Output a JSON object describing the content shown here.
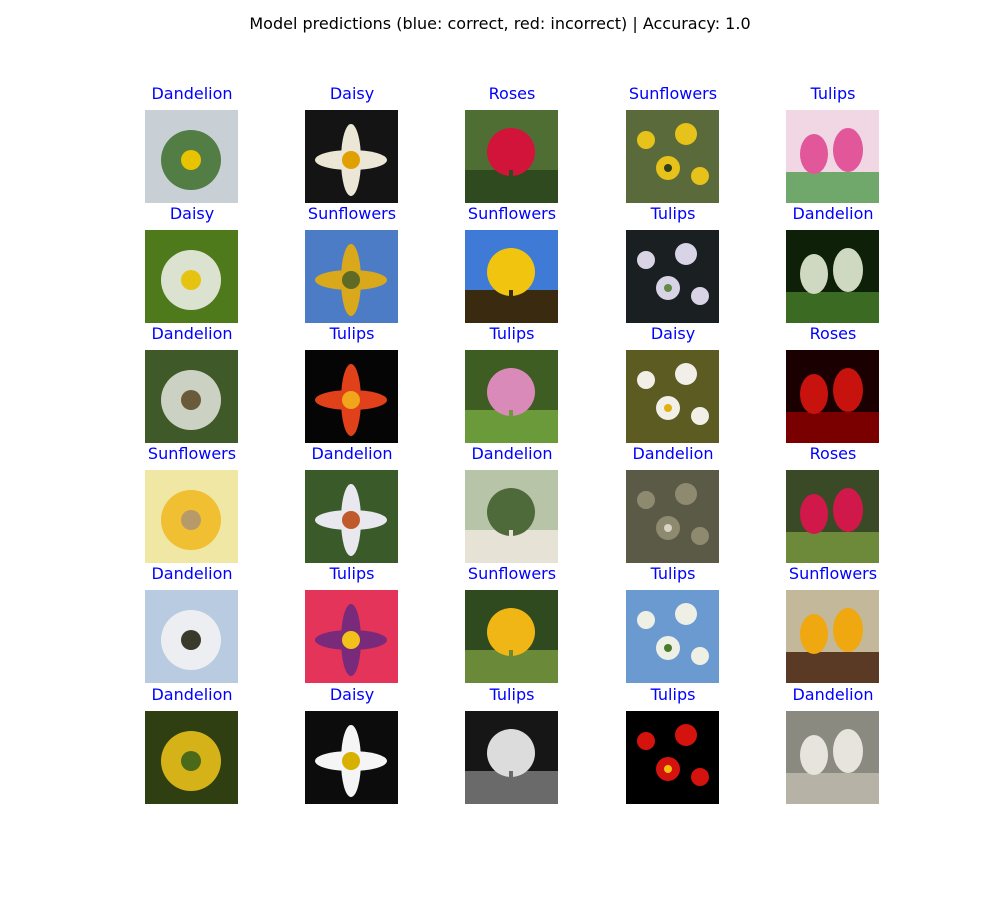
{
  "title": "Model predictions (blue: correct, red: incorrect) | Accuracy: 1.0",
  "colors": {
    "correct": "#0000ff",
    "incorrect": "#ff0000"
  },
  "grid": [
    [
      {
        "label": "Dandelion",
        "correct": true,
        "palette": [
          "#c8d0d6",
          "#3d6e2a",
          "#e8c400"
        ]
      },
      {
        "label": "Daisy",
        "correct": true,
        "palette": [
          "#141414",
          "#ece6d6",
          "#e0a000"
        ]
      },
      {
        "label": "Roses",
        "correct": true,
        "palette": [
          "#4f6e34",
          "#d2143a",
          "#2f4a1e"
        ]
      },
      {
        "label": "Sunflowers",
        "correct": true,
        "palette": [
          "#5b6a3a",
          "#e6c21a",
          "#30401a"
        ]
      },
      {
        "label": "Tulips",
        "correct": true,
        "palette": [
          "#f1d6e4",
          "#e2579a",
          "#6fa86a"
        ]
      }
    ],
    [
      {
        "label": "Daisy",
        "correct": true,
        "palette": [
          "#4e7a1c",
          "#f5f5f0",
          "#e7c311"
        ]
      },
      {
        "label": "Sunflowers",
        "correct": true,
        "palette": [
          "#4d7cc6",
          "#d9a91b",
          "#5f6a24"
        ]
      },
      {
        "label": "Sunflowers",
        "correct": true,
        "palette": [
          "#3f7bd6",
          "#f1c40f",
          "#3a2a10"
        ]
      },
      {
        "label": "Tulips",
        "correct": true,
        "palette": [
          "#1a1f22",
          "#d8d4e6",
          "#5f8a4a"
        ]
      },
      {
        "label": "Dandelion",
        "correct": true,
        "palette": [
          "#0f2008",
          "#cfd8c0",
          "#3b6b22"
        ]
      }
    ],
    [
      {
        "label": "Dandelion",
        "correct": true,
        "palette": [
          "#3f5a28",
          "#e4e6de",
          "#6b5a3a"
        ]
      },
      {
        "label": "Tulips",
        "correct": true,
        "palette": [
          "#050505",
          "#e0401a",
          "#f0a51a"
        ]
      },
      {
        "label": "Tulips",
        "correct": true,
        "palette": [
          "#3e5d22",
          "#d98ab8",
          "#6a9a3a"
        ]
      },
      {
        "label": "Daisy",
        "correct": true,
        "palette": [
          "#5b5b22",
          "#f1efe8",
          "#e0b010"
        ]
      },
      {
        "label": "Roses",
        "correct": true,
        "palette": [
          "#1a0000",
          "#c8120e",
          "#7a0000"
        ]
      }
    ],
    [
      {
        "label": "Sunflowers",
        "correct": true,
        "palette": [
          "#f0e7a4",
          "#f0b81e",
          "#b79a6a"
        ]
      },
      {
        "label": "Dandelion",
        "correct": true,
        "palette": [
          "#3a5a2a",
          "#e8e8ee",
          "#c05a2a"
        ]
      },
      {
        "label": "Dandelion",
        "correct": true,
        "palette": [
          "#b8c4a8",
          "#4f6a3a",
          "#e6e2d6"
        ]
      },
      {
        "label": "Dandelion",
        "correct": true,
        "palette": [
          "#5a5a46",
          "#8e8a70",
          "#d6d6c0"
        ]
      },
      {
        "label": "Roses",
        "correct": true,
        "palette": [
          "#3a4a26",
          "#d0184a",
          "#6d8a3a"
        ]
      }
    ],
    [
      {
        "label": "Dandelion",
        "correct": true,
        "palette": [
          "#b8cbe0",
          "#f5f5f5",
          "#3a3a2a"
        ]
      },
      {
        "label": "Tulips",
        "correct": true,
        "palette": [
          "#e5345a",
          "#7a2a7a",
          "#f2c21a"
        ]
      },
      {
        "label": "Sunflowers",
        "correct": true,
        "palette": [
          "#2f4a1e",
          "#f0b616",
          "#6a8a3a"
        ]
      },
      {
        "label": "Tulips",
        "correct": true,
        "palette": [
          "#6a9ad0",
          "#eef0e6",
          "#4a7a2a"
        ]
      },
      {
        "label": "Sunflowers",
        "correct": true,
        "palette": [
          "#c4b89a",
          "#f0a810",
          "#5a3a24"
        ]
      }
    ],
    [
      {
        "label": "Dandelion",
        "correct": true,
        "palette": [
          "#2f3f12",
          "#f2c81a",
          "#4a6a1a"
        ]
      },
      {
        "label": "Daisy",
        "correct": true,
        "palette": [
          "#0c0c0c",
          "#f5f5f5",
          "#d8b000"
        ]
      },
      {
        "label": "Tulips",
        "correct": true,
        "palette": [
          "#161616",
          "#dcdcdc",
          "#6a6a6a"
        ]
      },
      {
        "label": "Tulips",
        "correct": true,
        "palette": [
          "#000000",
          "#d4120e",
          "#f0c010"
        ]
      },
      {
        "label": "Dandelion",
        "correct": true,
        "palette": [
          "#8a8a80",
          "#e6e4dc",
          "#b6b2a6"
        ]
      }
    ]
  ]
}
